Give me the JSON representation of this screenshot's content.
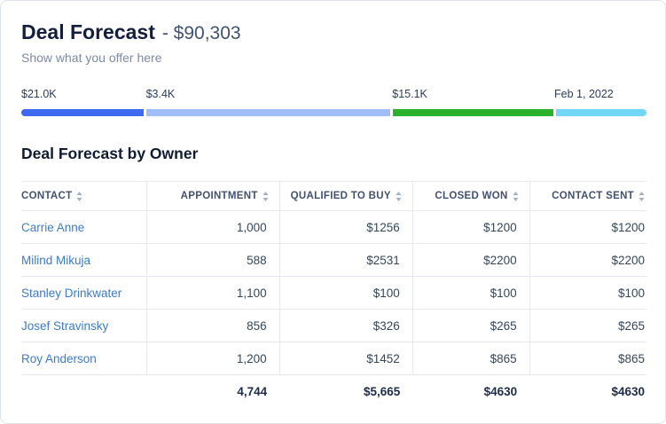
{
  "header": {
    "title": "Deal Forecast",
    "amount": "- $90,303",
    "subtitle": "Show what you offer here"
  },
  "colors": {
    "link": "#3d7cc9",
    "title": "#121f3d"
  },
  "forecast_bar": {
    "segments": [
      {
        "label": "$21.0K",
        "color": "#3e6af3",
        "width_pct": 20
      },
      {
        "label": "$3.4K",
        "color": "#a0bdf8",
        "width_pct": 39.5
      },
      {
        "label": "$15.1K",
        "color": "#2cb12c",
        "width_pct": 26
      },
      {
        "label": "Feb 1, 2022",
        "color": "#74d6f7",
        "width_pct": 14.5
      }
    ]
  },
  "table": {
    "title": "Deal Forecast by Owner",
    "columns": [
      {
        "label": "CONTACT"
      },
      {
        "label": "APPOINTMENT"
      },
      {
        "label": "QUALIFIED TO BUY"
      },
      {
        "label": "CLOSED WON"
      },
      {
        "label": "CONTACT SENT"
      }
    ],
    "rows": [
      {
        "contact": "Carrie Anne",
        "appointment": "1,000",
        "qualified": "$1256",
        "closed_won": "$1200",
        "contact_sent": "$1200"
      },
      {
        "contact": "Milind Mikuja",
        "appointment": "588",
        "qualified": "$2531",
        "closed_won": "$2200",
        "contact_sent": "$2200"
      },
      {
        "contact": "Stanley Drinkwater",
        "appointment": "1,100",
        "qualified": "$100",
        "closed_won": "$100",
        "contact_sent": "$100"
      },
      {
        "contact": "Josef Stravinsky",
        "appointment": "856",
        "qualified": "$326",
        "closed_won": "$265",
        "contact_sent": "$265"
      },
      {
        "contact": "Roy Anderson",
        "appointment": "1,200",
        "qualified": "$1452",
        "closed_won": "$865",
        "contact_sent": "$865"
      }
    ],
    "totals": {
      "appointment": "4,744",
      "qualified": "$5,665",
      "closed_won": "$4630",
      "contact_sent": "$4630"
    }
  }
}
